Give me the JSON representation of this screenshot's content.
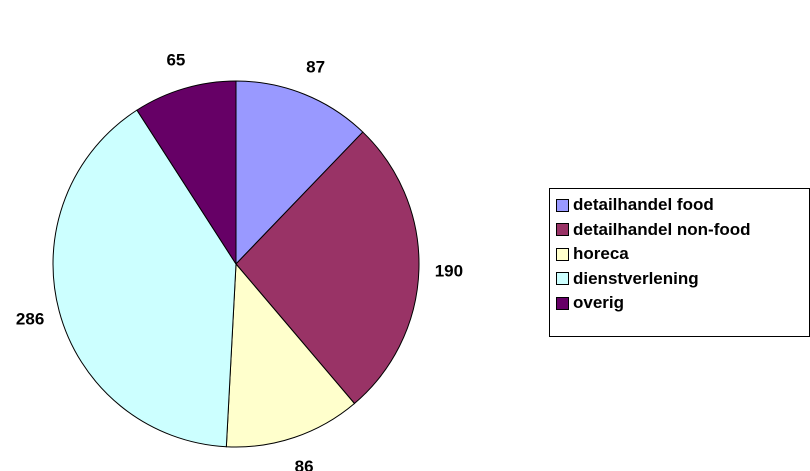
{
  "chart_data": {
    "type": "pie",
    "title": "",
    "slices": [
      {
        "label": "detailhandel food",
        "value": 87,
        "color": "#9999ff"
      },
      {
        "label": "detailhandel non-food",
        "value": 190,
        "color": "#993366"
      },
      {
        "label": "horeca",
        "value": 86,
        "color": "#ffffcc"
      },
      {
        "label": "dienstverlening",
        "value": 286,
        "color": "#ccffff"
      },
      {
        "label": "overig",
        "value": 65,
        "color": "#660066"
      }
    ],
    "legend_position": "right",
    "start_angle": "top",
    "direction": "clockwise"
  }
}
